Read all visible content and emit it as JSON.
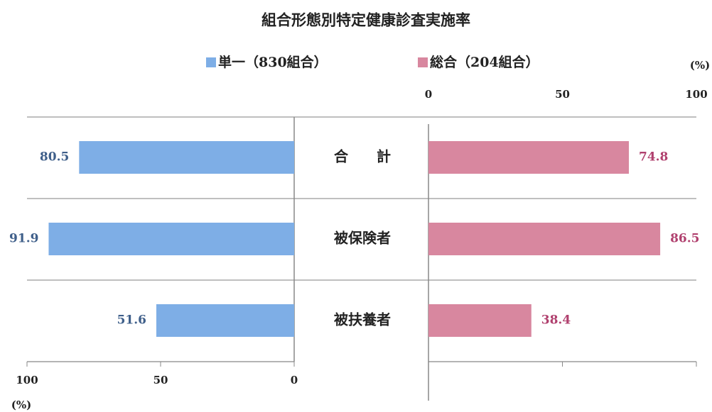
{
  "chart_data": {
    "type": "butterfly",
    "title": "組合形態別特定健康診査実施率",
    "categories": [
      "合　　計",
      "被保険者",
      "被扶養者"
    ],
    "series": [
      {
        "name": "単一（830組合）",
        "color": "#7eaee6",
        "label_color": "#3f5f8a",
        "values": [
          80.5,
          91.9,
          51.6
        ]
      },
      {
        "name": "総合（204組合）",
        "color": "#d8879f",
        "label_color": "#b0406e",
        "values": [
          74.8,
          86.5,
          38.4
        ]
      }
    ],
    "unit": "(%)",
    "xlim": [
      0,
      100
    ],
    "xticks": [
      0,
      50,
      100
    ]
  }
}
